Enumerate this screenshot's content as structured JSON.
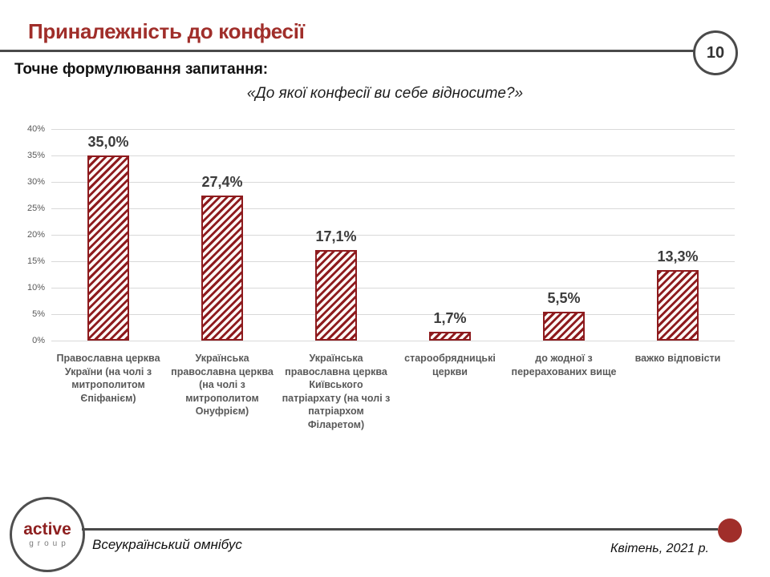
{
  "header": {
    "title": "Приналежність до конфесії",
    "page_number": "10"
  },
  "question": {
    "intro": "Точне формулювання запитання:",
    "text": "«До якої конфесії ви себе відносите?»"
  },
  "chart_data": {
    "type": "bar",
    "title": "",
    "xlabel": "",
    "ylabel": "",
    "categories": [
      "Православна церква України (на чолі з митрополитом Єпіфанієм)",
      "Українська православна церква (на чолі з митрополитом Онуфрієм)",
      "Українська православна церква Київського патріархату (на чолі з патріархом Філаретом)",
      "старообрядницькі церкви",
      "до жодної з перерахованих вище",
      "важко відповісти"
    ],
    "values": [
      35.0,
      27.4,
      17.1,
      1.7,
      5.5,
      13.3
    ],
    "value_labels": [
      "35,0%",
      "27,4%",
      "17,1%",
      "1,7%",
      "5,5%",
      "13,3%"
    ],
    "ylim": [
      0,
      40
    ],
    "ytick_step": 5,
    "ytick_labels": [
      "0%",
      "5%",
      "10%",
      "15%",
      "20%",
      "25%",
      "30%",
      "35%",
      "40%"
    ],
    "grid": true,
    "legend": false,
    "bar_style": "diagonal-hatch",
    "bar_color": "#8E1B1E"
  },
  "footer": {
    "logo_primary": "active",
    "logo_secondary": "group",
    "left_text": "Всеукраїнський омнібус",
    "right_text": "Квітень, 2021 р."
  },
  "colors": {
    "accent_red": "#A02E2A",
    "bar_red": "#8E1B1E",
    "line_gray": "#4A4A4A",
    "grid_gray": "#D9D9D9",
    "label_gray": "#595959",
    "value_label_gray": "#3C3C3C"
  }
}
